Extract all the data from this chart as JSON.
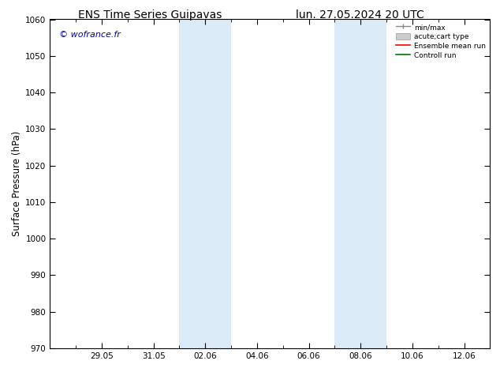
{
  "title_left": "ENS Time Series Guipavas",
  "title_right": "lun. 27.05.2024 20 UTC",
  "ylabel": "Surface Pressure (hPa)",
  "ylim": [
    970,
    1060
  ],
  "yticks": [
    970,
    980,
    990,
    1000,
    1010,
    1020,
    1030,
    1040,
    1050,
    1060
  ],
  "xtick_labels": [
    "29.05",
    "31.05",
    "02.06",
    "04.06",
    "06.06",
    "08.06",
    "10.06",
    "12.06"
  ],
  "xtick_positions": [
    2,
    4,
    6,
    8,
    10,
    12,
    14,
    16
  ],
  "xlim": [
    0,
    17
  ],
  "shaded_bands": [
    {
      "x_start": 5,
      "x_end": 7
    },
    {
      "x_start": 11,
      "x_end": 13
    }
  ],
  "shaded_color": "#daeaf7",
  "background_color": "#ffffff",
  "watermark_text": "© wofrance.fr",
  "watermark_color": "#0000bb",
  "title_fontsize": 10,
  "tick_fontsize": 7.5,
  "ylabel_fontsize": 8.5
}
